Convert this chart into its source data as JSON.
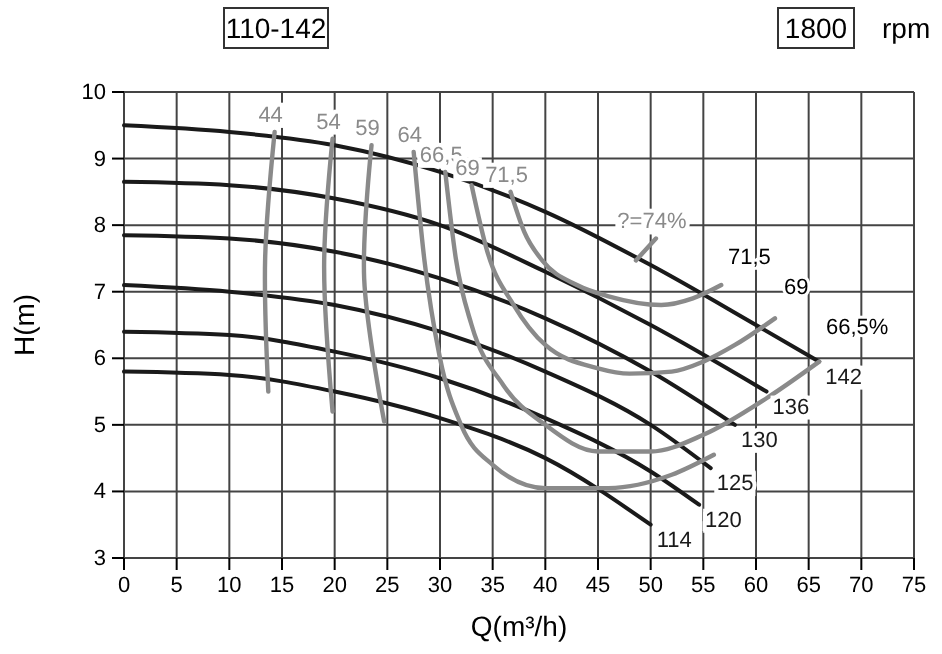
{
  "chart_data": {
    "type": "line",
    "xlabel": "Q(m³/h)",
    "ylabel": "H(m)",
    "xlim": [
      0,
      75
    ],
    "xticks": [
      0,
      5,
      10,
      15,
      20,
      25,
      30,
      35,
      40,
      45,
      50,
      55,
      60,
      65,
      70,
      75
    ],
    "ylim": [
      3,
      10
    ],
    "yticks": [
      3,
      4,
      5,
      6,
      7,
      8,
      9,
      10
    ],
    "grid": true,
    "legend": false,
    "marker": "none",
    "line_style": "solid",
    "annotations": [
      "110-142",
      "1800",
      "rpm",
      "71,5",
      "69",
      "66,5%"
    ],
    "series": [
      {
        "name": "142",
        "color": "#1a1a1a",
        "x": [
          0,
          10,
          20,
          30,
          40,
          50,
          60,
          66
        ],
        "values": [
          9.5,
          9.4,
          9.2,
          8.8,
          8.2,
          7.4,
          6.5,
          5.95
        ]
      },
      {
        "name": "136",
        "color": "#1a1a1a",
        "x": [
          0,
          10,
          20,
          30,
          40,
          50,
          61
        ],
        "values": [
          8.65,
          8.6,
          8.4,
          8.0,
          7.3,
          6.5,
          5.5
        ]
      },
      {
        "name": "130",
        "color": "#1a1a1a",
        "x": [
          0,
          10,
          20,
          30,
          40,
          50,
          58
        ],
        "values": [
          7.85,
          7.8,
          7.6,
          7.2,
          6.6,
          5.8,
          5.0
        ]
      },
      {
        "name": "125",
        "color": "#1a1a1a",
        "x": [
          0,
          10,
          20,
          30,
          40,
          50,
          55.7
        ],
        "values": [
          7.1,
          7.0,
          6.8,
          6.4,
          5.8,
          5.0,
          4.35
        ]
      },
      {
        "name": "120",
        "color": "#1a1a1a",
        "x": [
          0,
          10,
          20,
          30,
          40,
          50,
          54.6
        ],
        "values": [
          6.4,
          6.35,
          6.1,
          5.7,
          5.1,
          4.3,
          3.8
        ]
      },
      {
        "name": "114",
        "color": "#1a1a1a",
        "x": [
          0,
          10,
          20,
          30,
          40,
          50
        ],
        "values": [
          5.8,
          5.75,
          5.5,
          5.1,
          4.5,
          3.5
        ]
      },
      {
        "name": "44",
        "color": "#8a8a8a",
        "x": [
          14.3,
          13.4,
          13.7
        ],
        "values": [
          9.4,
          7.5,
          5.5
        ]
      },
      {
        "name": "54",
        "color": "#8a8a8a",
        "x": [
          19.8,
          19,
          19.8
        ],
        "values": [
          9.3,
          7.4,
          5.2
        ]
      },
      {
        "name": "59",
        "color": "#8a8a8a",
        "x": [
          23.5,
          22.8,
          24.7
        ],
        "values": [
          9.2,
          7.2,
          5.05
        ]
      },
      {
        "name": "64",
        "color": "#8a8a8a",
        "x": [
          27.5,
          28.5,
          30,
          32,
          35,
          40,
          46,
          52,
          56
        ],
        "values": [
          9.1,
          7.5,
          6,
          5,
          4.4,
          4.05,
          4.05,
          4.25,
          4.55
        ]
      },
      {
        "name": "66,5",
        "color": "#8a8a8a",
        "x": [
          30.5,
          31.5,
          33,
          36,
          40,
          45,
          50,
          55,
          61,
          66
        ],
        "values": [
          8.8,
          7.5,
          6.5,
          5.6,
          5.0,
          4.6,
          4.6,
          4.85,
          5.4,
          5.95
        ]
      },
      {
        "name": "69",
        "color": "#8a8a8a",
        "x": [
          33,
          34.5,
          37,
          40,
          45,
          48,
          52,
          55,
          58,
          61.8
        ],
        "values": [
          8.6,
          7.6,
          6.8,
          6.2,
          5.85,
          5.77,
          5.8,
          5.95,
          6.2,
          6.6
        ]
      },
      {
        "name": "71,5",
        "color": "#8a8a8a",
        "x": [
          36.7,
          38,
          39.7,
          43,
          46,
          51,
          54,
          56.7
        ],
        "values": [
          8.5,
          7.9,
          7.47,
          7.1,
          6.93,
          6.8,
          6.9,
          7.1
        ]
      },
      {
        "name": "?=74%",
        "color": "#8a8a8a",
        "x": [
          48.6,
          50.5
        ],
        "values": [
          7.47,
          7.8
        ]
      }
    ]
  }
}
